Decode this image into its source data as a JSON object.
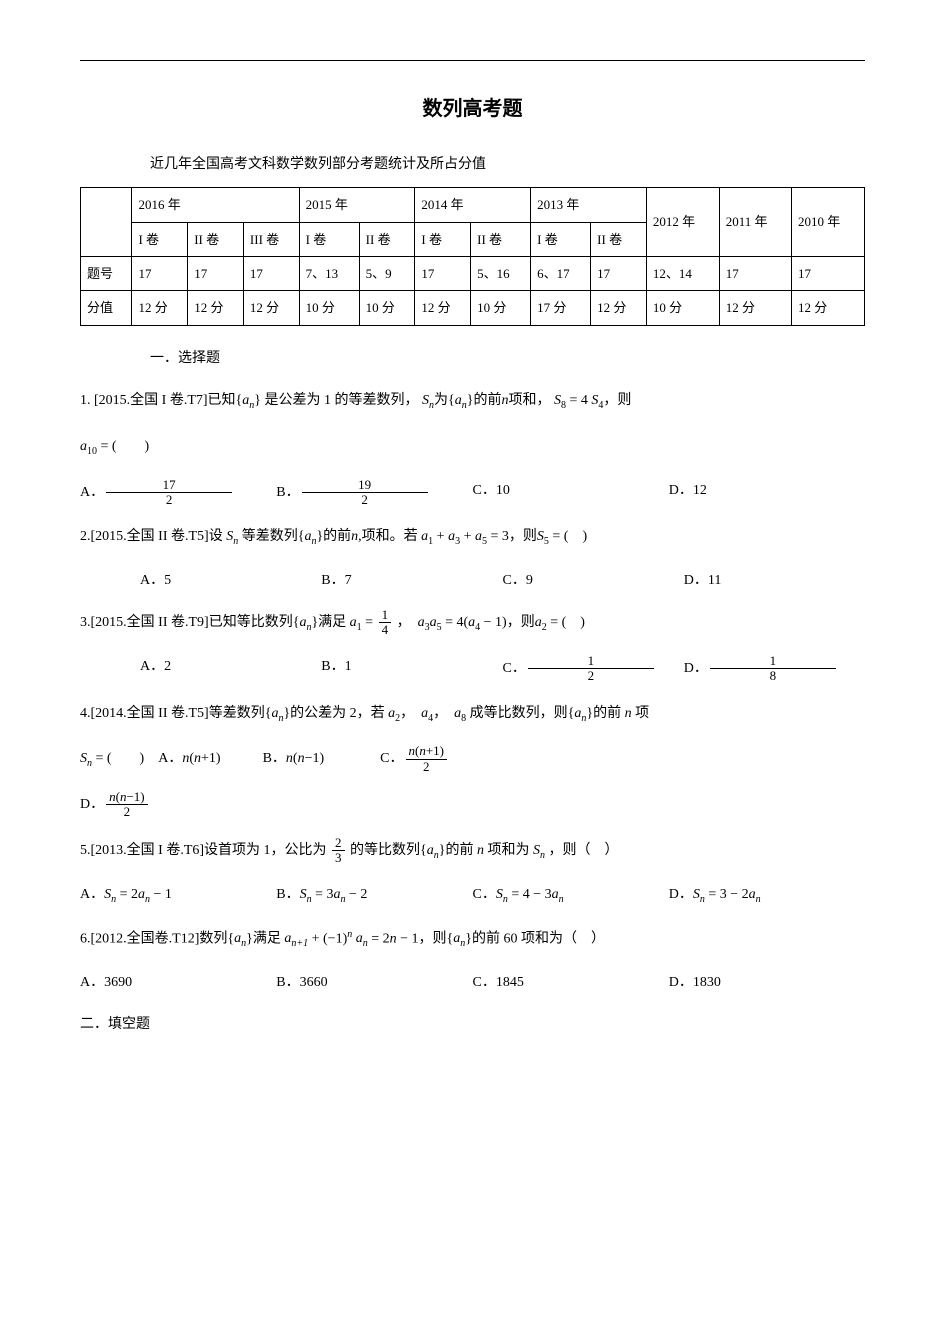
{
  "title": "数列高考题",
  "subtitle": "近几年全国高考文科数学数列部分考题统计及所占分值",
  "table": {
    "years": [
      "2016 年",
      "2015 年",
      "2014 年",
      "2013 年",
      "2012 年",
      "2011 年",
      "2010 年"
    ],
    "papers_2016": [
      "I 卷",
      "II 卷",
      "III 卷"
    ],
    "papers_2015": [
      "I 卷",
      "II 卷"
    ],
    "papers_2014": [
      "I 卷",
      "II 卷"
    ],
    "papers_2013": [
      "I 卷",
      "II 卷"
    ],
    "row_label_1": "题号",
    "row_label_2": "分值",
    "tihao": [
      "17",
      "17",
      "17",
      "7、13",
      "5、9",
      "17",
      "5、16",
      "6、17",
      "17",
      "12、14",
      "17",
      "17"
    ],
    "fenzhi": [
      "12 分",
      "12 分",
      "12 分",
      "10 分",
      "10 分",
      "12 分",
      "10 分",
      "17 分",
      "12 分",
      "10 分",
      "12 分",
      "12 分"
    ]
  },
  "section1": "一．选择题",
  "q1": {
    "prefix": "1. [2015.全国 I 卷.T7]已知",
    "mid1": "是公差为 1 的等差数列，",
    "mid2": "的前",
    "mid3": "项和，",
    "cond": "S₈ = 4 S₄",
    "tail": "，则",
    "a10": "a₁₀ = (　　)",
    "optA": "A．",
    "optA_num": "17",
    "optA_den": "2",
    "optB": "B．",
    "optB_num": "19",
    "optB_den": "2",
    "optC": "C．10",
    "optD": "D．12"
  },
  "q2": {
    "text": "2.[2015.全国 II 卷.T5]设",
    "mid": "等差数列",
    "mid2": "的前",
    "mid3": "项和。若",
    "cond": "a₁ + a₃ + a₅ = 3",
    "tail": "，则",
    "s5": "S₅ = (　)",
    "optA": "A．5",
    "optB": "B．7",
    "optC": "C．9",
    "optD": "D．11"
  },
  "q3": {
    "text": "3.[2015.全国 II 卷.T9]已知等比数列",
    "mid": "满足",
    "a1eq": "a₁ = ",
    "a1_num": "1",
    "a1_den": "4",
    "cond2": "，　a₃a₅ = 4(a₄ − 1)",
    "tail": "，则",
    "a2": "a₂ = (　)",
    "optA": "A．2",
    "optB": "B．1",
    "optC": "C．",
    "optC_num": "1",
    "optC_den": "2",
    "optD": "D．",
    "optD_num": "1",
    "optD_den": "8"
  },
  "q4": {
    "text": "4.[2014.全国 II 卷.T5]等差数列",
    "mid": "的公差为 2，若",
    "terms": "a₂，　a₄，　a₈",
    "mid2": "成等比数列，则",
    "tail": "的前",
    "nterm": "n",
    "tail2": "项",
    "sn": "Sₙ = (　　)　A．",
    "optA": "n(n+1)",
    "optB_label": "B．",
    "optB": "n(n−1)",
    "optC_label": "C．",
    "optC_num": "n(n+1)",
    "optC_den": "2",
    "optD_label": "D．",
    "optD_num": "n(n−1)",
    "optD_den": "2"
  },
  "q5": {
    "text": "5.[2013.全国 I 卷.T6]设首项为 1，公比为",
    "r_num": "2",
    "r_den": "3",
    "mid": "的等比数列",
    "mid2": "的前",
    "nterm": "n",
    "mid3": "项和为",
    "sn": "Sₙ",
    "tail": "，则（　）",
    "optA": "A．Sₙ = 2aₙ − 1",
    "optB": "B．Sₙ = 3aₙ − 2",
    "optC": "C．Sₙ = 4 − 3aₙ",
    "optD": "D．Sₙ = 3 − 2aₙ"
  },
  "q6": {
    "text": "6.[2012.全国卷.T12]数列",
    "mid": "满足",
    "cond": "aₙ₊₁ + (−1)ⁿ aₙ = 2n − 1",
    "tail": "，则",
    "tail2": "的前 60 项和为（　）",
    "optA": "A．3690",
    "optB": "B．3660",
    "optC": "C．1845",
    "optD": "D．1830"
  },
  "section2": "二．填空题"
}
